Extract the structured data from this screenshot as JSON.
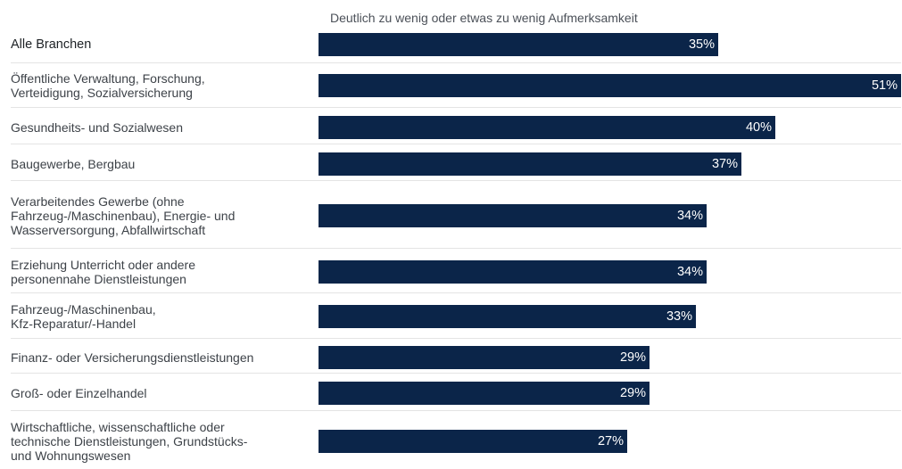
{
  "chart_data": {
    "type": "bar",
    "orientation": "horizontal",
    "title": "",
    "series": [
      {
        "name": "Deutlich zu wenig oder etwas zu wenig Aufmerksamkeit",
        "values": [
          35,
          51,
          40,
          37,
          34,
          34,
          33,
          29,
          29,
          27
        ]
      }
    ],
    "categories": [
      "Alle Branchen",
      "Öffentliche Verwaltung, Forschung, Verteidigung, Sozialversicherung",
      "Gesundheits- und Sozialwesen",
      "Baugewerbe, Bergbau",
      "Verarbeitendes Gewerbe (ohne Fahrzeug-/Maschinenbau), Energie- und Wasserversorgung, Abfallwirtschaft",
      "Erziehung Unterricht oder andere personennahe Dienstleistungen",
      "Fahrzeug-/Maschinenbau, Kfz-Reparatur/-Handel",
      "Finanz- oder Versicherungsdienstleistungen",
      "Groß- oder Einzelhandel",
      "Wirtschaftliche, wissenschaftliche oder technische Dienstleistungen, Grundstücks- und Wohnungswesen"
    ],
    "category_lines": [
      "Alle Branchen",
      "Öffentliche Verwaltung, Forschung,\nVerteidigung, Sozialversicherung",
      "Gesundheits- und Sozialwesen",
      "Baugewerbe, Bergbau",
      "Verarbeitendes Gewerbe (ohne\nFahrzeug-/Maschinenbau), Energie- und\nWasserversorgung, Abfallwirtschaft",
      "Erziehung Unterricht oder andere\npersonennahe Dienstleistungen",
      "Fahrzeug-/Maschinenbau,\nKfz-Reparatur/-Handel",
      "Finanz- oder Versicherungsdienstleistungen",
      "Groß- oder Einzelhandel",
      "Wirtschaftliche, wissenschaftliche oder\ntechnische Dienstleistungen, Grundstücks-\nund Wohnungswesen"
    ],
    "value_labels": [
      "35%",
      "51%",
      "40%",
      "37%",
      "34%",
      "34%",
      "33%",
      "29%",
      "29%",
      "27%"
    ],
    "xlim": [
      0,
      51
    ],
    "unit": "%",
    "grid": false,
    "legend": "none",
    "colors": {
      "bar": "#0b2549",
      "value_text": "#ffffff",
      "divider": "#e4e4e4"
    }
  }
}
